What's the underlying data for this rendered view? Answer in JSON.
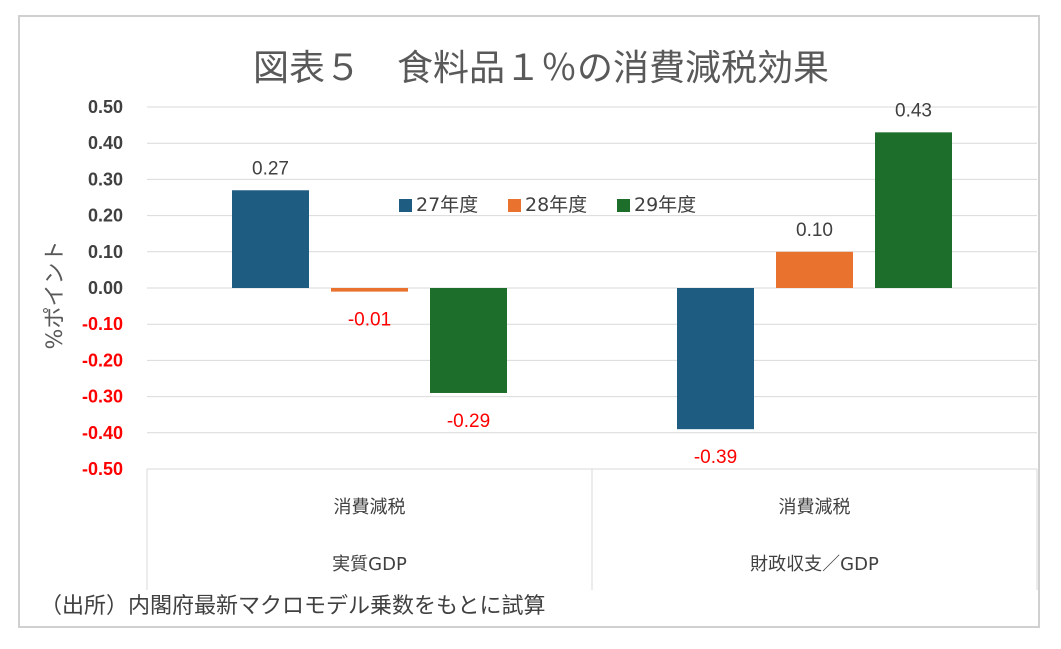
{
  "chart_data": {
    "type": "bar",
    "title": "図表５　食料品１％の消費減税効果",
    "ylabel": "%ポイント",
    "ylim": [
      -0.5,
      0.5
    ],
    "yticks": [
      "0.50",
      "0.40",
      "0.30",
      "0.20",
      "0.10",
      "0.00",
      "-0.10",
      "-0.20",
      "-0.30",
      "-0.40",
      "-0.50"
    ],
    "categories": [
      {
        "top": "消費減税",
        "bottom": "実質GDP"
      },
      {
        "top": "消費減税",
        "bottom": "財政収支／GDP"
      }
    ],
    "series": [
      {
        "name": "27年度",
        "color": "#1f5c82",
        "values": [
          0.27,
          -0.39
        ],
        "labels": [
          "0.27",
          "-0.39"
        ]
      },
      {
        "name": "28年度",
        "color": "#e9722e",
        "values": [
          -0.01,
          0.1
        ],
        "labels": [
          "-0.01",
          "0.10"
        ]
      },
      {
        "name": "29年度",
        "color": "#1e6e2b",
        "values": [
          -0.29,
          0.43
        ],
        "labels": [
          "-0.29",
          "0.43"
        ]
      }
    ],
    "negative_color": "#ff0000",
    "positive_label_color": "#404040",
    "grid": true,
    "legend_position": "top-center"
  },
  "source_note": "（出所）内閣府最新マクロモデル乗数をもとに試算"
}
